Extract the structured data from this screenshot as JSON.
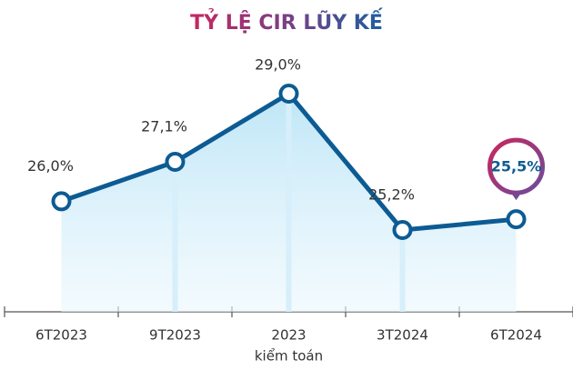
{
  "chart_data": {
    "type": "line",
    "title": "TỶ LỆ CIR LŨY KẾ",
    "categories": [
      "6T2023",
      "9T2023",
      "2023",
      "3T2024",
      "6T2024"
    ],
    "annotation": "kiểm toán",
    "values": [
      26.0,
      27.1,
      29.0,
      25.2,
      25.5
    ],
    "value_labels": [
      "26,0%",
      "27,1%",
      "29,0%",
      "25,2%",
      "25,5%"
    ],
    "color": "#0d5b93"
  }
}
